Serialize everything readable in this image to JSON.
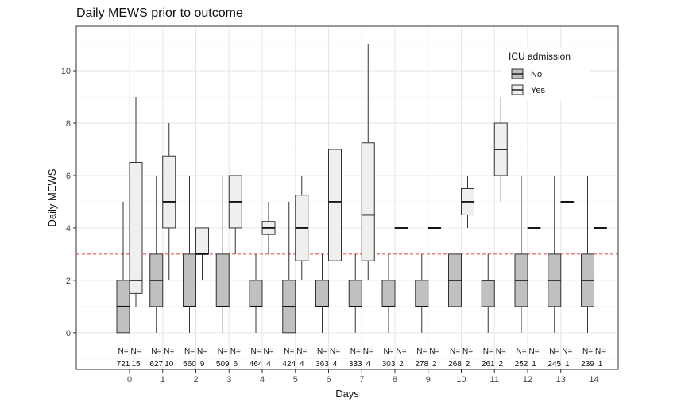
{
  "chart_data": {
    "type": "boxplot",
    "title": "Daily MEWS prior to outcome",
    "xlabel": "Days",
    "ylabel": "Daily MEWS",
    "categories": [
      "0",
      "1",
      "2",
      "3",
      "4",
      "5",
      "6",
      "7",
      "8",
      "9",
      "10",
      "11",
      "12",
      "13",
      "14"
    ],
    "ylim": [
      -1.4,
      11.7
    ],
    "yticks": [
      0,
      2,
      4,
      6,
      8,
      10
    ],
    "grid": true,
    "reference_line": {
      "y": 3,
      "color": "#e8433b",
      "style": "dashed"
    },
    "legend": {
      "title": "ICU admission",
      "position": "top-right",
      "entries": [
        {
          "name": "No",
          "color": "#c0c0c0"
        },
        {
          "name": "Yes",
          "color": "#efefef"
        }
      ]
    },
    "n_prefix": "N=",
    "series": [
      {
        "name": "No",
        "color": "#c0c0c0",
        "boxes": [
          {
            "min": 0,
            "q1": 0,
            "median": 1,
            "q3": 2,
            "max": 5,
            "n": 721
          },
          {
            "min": 0,
            "q1": 1,
            "median": 2,
            "q3": 3,
            "max": 6,
            "n": 627
          },
          {
            "min": 0,
            "q1": 1,
            "median": 1,
            "q3": 3,
            "max": 6,
            "n": 560
          },
          {
            "min": 0,
            "q1": 1,
            "median": 1,
            "q3": 3,
            "max": 6,
            "n": 509
          },
          {
            "min": 0,
            "q1": 1,
            "median": 1,
            "q3": 2,
            "max": 3,
            "n": 464
          },
          {
            "min": 0,
            "q1": 0,
            "median": 1,
            "q3": 2,
            "max": 5,
            "n": 424
          },
          {
            "min": 0,
            "q1": 1,
            "median": 1,
            "q3": 2,
            "max": 3,
            "n": 363
          },
          {
            "min": 0,
            "q1": 1,
            "median": 1,
            "q3": 2,
            "max": 3,
            "n": 333
          },
          {
            "min": 0,
            "q1": 1,
            "median": 1,
            "q3": 2,
            "max": 3,
            "n": 303
          },
          {
            "min": 0,
            "q1": 1,
            "median": 1,
            "q3": 2,
            "max": 3,
            "n": 278
          },
          {
            "min": 0,
            "q1": 1,
            "median": 2,
            "q3": 3,
            "max": 6,
            "n": 268
          },
          {
            "min": 0,
            "q1": 1,
            "median": 2,
            "q3": 2,
            "max": 3,
            "n": 261
          },
          {
            "min": 0,
            "q1": 1,
            "median": 2,
            "q3": 3,
            "max": 6,
            "n": 252
          },
          {
            "min": 0,
            "q1": 1,
            "median": 2,
            "q3": 3,
            "max": 6,
            "n": 245
          },
          {
            "min": 0,
            "q1": 1,
            "median": 2,
            "q3": 3,
            "max": 6,
            "n": 239
          }
        ]
      },
      {
        "name": "Yes",
        "color": "#efefef",
        "boxes": [
          {
            "min": 1,
            "q1": 1.5,
            "median": 2,
            "q3": 6.5,
            "max": 9,
            "n": 15
          },
          {
            "min": 2,
            "q1": 4,
            "median": 5,
            "q3": 6.75,
            "max": 8,
            "n": 10
          },
          {
            "min": 2,
            "q1": 3,
            "median": 3,
            "q3": 4,
            "max": 4,
            "n": 9
          },
          {
            "min": 3,
            "q1": 4,
            "median": 5,
            "q3": 6,
            "max": 6,
            "n": 6
          },
          {
            "min": 3,
            "q1": 3.75,
            "median": 4,
            "q3": 4.25,
            "max": 5,
            "n": 4
          },
          {
            "min": 2,
            "q1": 2.75,
            "median": 4,
            "q3": 5.25,
            "max": 6,
            "n": 4
          },
          {
            "min": 2,
            "q1": 2.75,
            "median": 5,
            "q3": 7,
            "max": 7,
            "n": 4
          },
          {
            "min": 2,
            "q1": 2.75,
            "median": 4.5,
            "q3": 7.25,
            "max": 11,
            "n": 4
          },
          {
            "min": 4,
            "q1": 4,
            "median": 4,
            "q3": 4,
            "max": 4,
            "n": 2
          },
          {
            "min": 4,
            "q1": 4,
            "median": 4,
            "q3": 4,
            "max": 4,
            "n": 2
          },
          {
            "min": 4,
            "q1": 4.5,
            "median": 5,
            "q3": 5.5,
            "max": 6,
            "n": 2
          },
          {
            "min": 5,
            "q1": 6,
            "median": 7,
            "q3": 8,
            "max": 9,
            "n": 2
          },
          {
            "min": 4,
            "q1": 4,
            "median": 4,
            "q3": 4,
            "max": 4,
            "n": 1
          },
          {
            "min": 5,
            "q1": 5,
            "median": 5,
            "q3": 5,
            "max": 5,
            "n": 1
          },
          {
            "min": 4,
            "q1": 4,
            "median": 4,
            "q3": 4,
            "max": 4,
            "n": 1
          }
        ]
      }
    ]
  }
}
